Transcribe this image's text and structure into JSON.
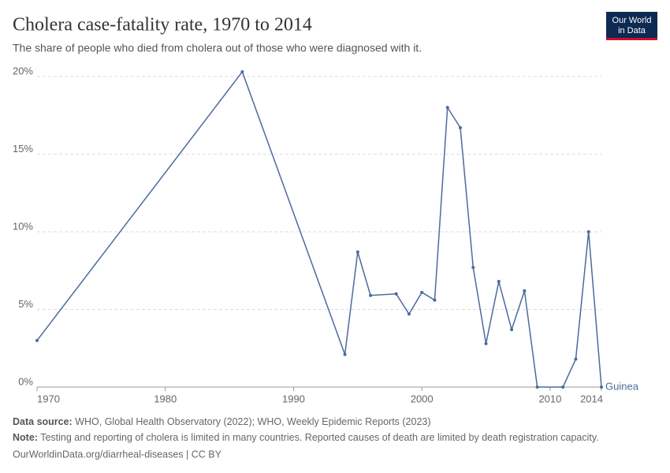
{
  "chart_data": {
    "type": "line",
    "title": "Cholera case-fatality rate, 1970 to 2014",
    "subtitle": "The share of people who died from cholera out of those who were diagnosed with it.",
    "x": [
      1970,
      1986,
      1994,
      1995,
      1996,
      1998,
      1999,
      2000,
      2001,
      2002,
      2003,
      2004,
      2005,
      2006,
      2007,
      2008,
      2009,
      2011,
      2012,
      2013,
      2014
    ],
    "series": [
      {
        "name": "Guinea",
        "color": "#4c6a9c",
        "values": [
          3.0,
          20.3,
          2.1,
          8.7,
          5.9,
          6.0,
          4.7,
          6.1,
          5.6,
          18.0,
          16.7,
          7.7,
          2.8,
          6.8,
          3.7,
          6.2,
          0,
          0,
          1.8,
          10.0,
          0
        ]
      }
    ],
    "xlim": [
      1970,
      2014
    ],
    "xticks": [
      1970,
      1980,
      1990,
      2000,
      2010,
      2014
    ],
    "ylim": [
      0,
      20
    ],
    "yticks": [
      {
        "value": 0,
        "label": "0%"
      },
      {
        "value": 5,
        "label": "5%"
      },
      {
        "value": 10,
        "label": "10%"
      },
      {
        "value": 15,
        "label": "15%"
      },
      {
        "value": 20,
        "label": "20%"
      }
    ],
    "grid": true,
    "logo": [
      "Our World",
      "in Data"
    ],
    "source_label": "Data source:",
    "source": "WHO, Global Health Observatory (2022); WHO, Weekly Epidemic Reports (2023)",
    "note_label": "Note:",
    "note": "Testing and reporting of cholera is limited in many countries. Reported causes of death are limited by death registration capacity.",
    "url": "OurWorldinData.org/diarrheal-diseases | CC BY"
  }
}
